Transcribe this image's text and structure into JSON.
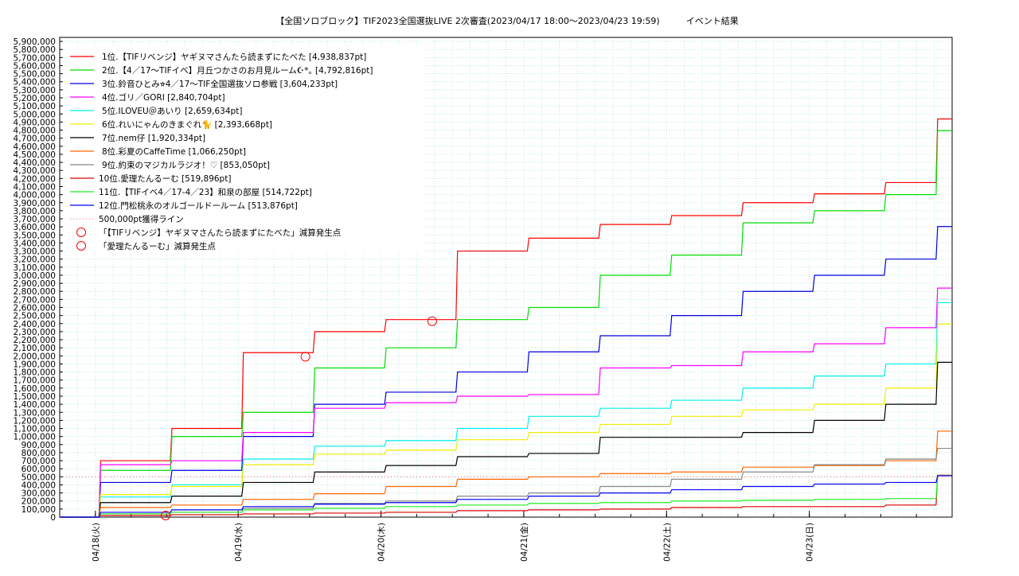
{
  "chart_data": {
    "type": "line",
    "title": "【全国ソロブロック】TIF2023全国選抜LIVE 2次審査(2023/04/17 18:00～2023/04/23 19:59)　　　イベント結果",
    "xlabel": "",
    "ylabel": "",
    "x_tick_labels": [
      "04/18(火)",
      "04/19(水)",
      "04/20(木)",
      "04/21(金)",
      "04/22(土)",
      "04/23(日)"
    ],
    "ylim": [
      0,
      5950000
    ],
    "y_tick_step": 100000,
    "grid": true,
    "legend_position": "top-left",
    "x": [
      0,
      12,
      24,
      36,
      48,
      60,
      72,
      84,
      96,
      108,
      120,
      132,
      144,
      150
    ],
    "x_unit": "hours since 2023/04/17 18:00",
    "series": [
      {
        "name": "1位.【TIFリベンジ】ヤギヌマさんたら読まずにたべた [4,938,837pt]",
        "color": "#ff0000",
        "values": [
          0,
          700000,
          1100000,
          2040000,
          2300000,
          2450000,
          3300000,
          3460000,
          3630000,
          3740000,
          3900000,
          4010000,
          4150000,
          4938837
        ]
      },
      {
        "name": "2位.【4／17〜TIFイベ】月丘つかさのお月見ルーム☪︎*｡ [4,792,816pt]",
        "color": "#00dd00",
        "values": [
          0,
          580000,
          1000000,
          1300000,
          1850000,
          2100000,
          2450000,
          2600000,
          3000000,
          3250000,
          3650000,
          3800000,
          4000000,
          4792816
        ]
      },
      {
        "name": "3位.鈴音ひとみ⭐︎4／17〜TIF全国選抜ソロ参戦 [3,604,233pt]",
        "color": "#0000dd",
        "values": [
          0,
          430000,
          580000,
          1000000,
          1400000,
          1550000,
          1800000,
          2050000,
          2250000,
          2500000,
          2800000,
          3000000,
          3200000,
          3604233
        ]
      },
      {
        "name": "4位.ゴリ／GORI [2,840,704pt]",
        "color": "#ff00ff",
        "values": [
          0,
          650000,
          700000,
          1050000,
          1350000,
          1420000,
          1500000,
          1520000,
          1850000,
          1880000,
          2050000,
          2150000,
          2350000,
          2840704
        ]
      },
      {
        "name": "5位.ILOVEU＠あいり [2,659,634pt]",
        "color": "#00eeee",
        "values": [
          0,
          250000,
          400000,
          720000,
          880000,
          950000,
          1100000,
          1250000,
          1350000,
          1450000,
          1600000,
          1750000,
          1900000,
          2659634
        ]
      },
      {
        "name": "6位.れいにゃんのきまぐれ🐈 [2,393,668pt]",
        "color": "#eeee00",
        "values": [
          0,
          280000,
          380000,
          650000,
          780000,
          830000,
          960000,
          1050000,
          1150000,
          1250000,
          1330000,
          1400000,
          1600000,
          2393668
        ]
      },
      {
        "name": "7位.nem仔 [1,920,334pt]",
        "color": "#000000",
        "values": [
          0,
          180000,
          260000,
          430000,
          560000,
          640000,
          750000,
          790000,
          990000,
          990000,
          1050000,
          1200000,
          1400000,
          1920334
        ]
      },
      {
        "name": "8位.彩夏のCaffeTime [1,066,250pt]",
        "color": "#ff6600",
        "values": [
          0,
          120000,
          150000,
          220000,
          290000,
          380000,
          470000,
          500000,
          540000,
          560000,
          620000,
          640000,
          700000,
          1066250
        ]
      },
      {
        "name": "9位.約束のマジカルラジオ！♡ [853,050pt]",
        "color": "#888888",
        "values": [
          0,
          40000,
          60000,
          110000,
          170000,
          200000,
          260000,
          300000,
          380000,
          470000,
          560000,
          650000,
          720000,
          853050
        ]
      },
      {
        "name": "10位.愛理たんるーむ [519,896pt]",
        "color": "#dd0000",
        "values": [
          0,
          20000,
          30000,
          40000,
          50000,
          60000,
          80000,
          90000,
          100000,
          120000,
          130000,
          130000,
          150000,
          519896
        ]
      },
      {
        "name": "11位.【TIFイベ4／17-4／23】和泉の部屋 [514,722pt]",
        "color": "#22ee22",
        "values": [
          0,
          40000,
          60000,
          90000,
          110000,
          130000,
          150000,
          170000,
          180000,
          200000,
          210000,
          220000,
          230000,
          514722
        ]
      },
      {
        "name": "12位.門松桃永のオルゴールドールーム [513,876pt]",
        "color": "#0000ff",
        "values": [
          0,
          60000,
          90000,
          130000,
          160000,
          180000,
          220000,
          260000,
          300000,
          340000,
          380000,
          410000,
          430000,
          513876
        ]
      }
    ],
    "threshold": {
      "name": "500,000pt獲得ライン",
      "value": 500000,
      "color": "#ff6666"
    },
    "deduction_markers": [
      {
        "name": "「【TIFリベンジ】ヤギヌマさんたら読まずにたべた」減算発生点",
        "color": "#ff0000",
        "points": [
          {
            "x": 41.3,
            "y": 1990000
          },
          {
            "x": 62.6,
            "y": 2430000
          }
        ]
      },
      {
        "name": "「愛理たんるーむ」減算発生点",
        "color": "#ff0000",
        "points": [
          {
            "x": 17.8,
            "y": 20000
          }
        ]
      }
    ]
  }
}
